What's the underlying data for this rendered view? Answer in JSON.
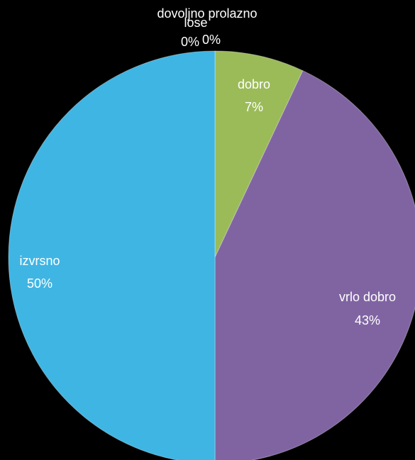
{
  "chart_data": {
    "type": "pie",
    "categories": [
      "lose",
      "dovoljno prolazno",
      "dobro",
      "vrlo dobro",
      "izvrsno"
    ],
    "values": [
      0,
      0,
      7,
      43,
      50
    ],
    "value_labels": [
      "0%",
      "0%",
      "7%",
      "43%",
      "50%"
    ],
    "colors": [
      "#4f81bd",
      "#c0504d",
      "#9bbb59",
      "#8064a2",
      "#3fb5e3"
    ]
  }
}
